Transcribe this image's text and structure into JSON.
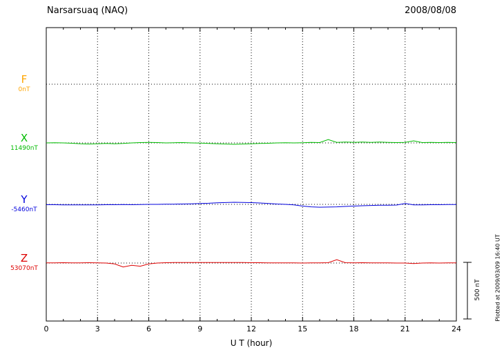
{
  "header": {
    "station": "Narsarsuaq (NAQ)",
    "date": "2008/08/08"
  },
  "xaxis": {
    "label": "U T (hour)",
    "ticks": [
      "0",
      "3",
      "6",
      "9",
      "12",
      "15",
      "18",
      "21",
      "24"
    ]
  },
  "scale_bar": {
    "label": "500 nT",
    "nT": 500
  },
  "footer_note": "Plotted at 2009/03/09 16:40 UT",
  "chart_data": {
    "type": "line",
    "title": "Narsarsuaq (NAQ) magnetogram 2008/08/08",
    "xlabel": "U T (hour)",
    "x_range": [
      0,
      24
    ],
    "x_step_hours": 0.5,
    "scale_bar_nT": 500,
    "grid": "dotted",
    "legend_position": "left",
    "series": [
      {
        "name": "F",
        "baseline_label": "0nT",
        "baseline_value": 0,
        "color": "#FFA500",
        "has_trace": false,
        "values_offset_nT": []
      },
      {
        "name": "X",
        "baseline_label": "11490nT",
        "baseline_value": 11490,
        "color": "#00BB00",
        "has_trace": true,
        "values_offset_nT": [
          0,
          2,
          0,
          -3,
          -8,
          -10,
          -8,
          -5,
          -8,
          -5,
          0,
          3,
          5,
          3,
          0,
          2,
          3,
          0,
          -2,
          -5,
          -8,
          -10,
          -12,
          -10,
          -8,
          -5,
          -3,
          0,
          2,
          0,
          2,
          5,
          3,
          30,
          5,
          8,
          5,
          8,
          5,
          8,
          5,
          3,
          5,
          18,
          3,
          5,
          3,
          5,
          3
        ]
      },
      {
        "name": "Y",
        "baseline_label": "-5460nT",
        "baseline_value": -5460,
        "color": "#0000DD",
        "has_trace": true,
        "values_offset_nT": [
          -3,
          -3,
          -4,
          -4,
          -5,
          -4,
          -4,
          -3,
          -3,
          -2,
          -3,
          -2,
          0,
          0,
          2,
          2,
          3,
          5,
          8,
          10,
          14,
          16,
          18,
          17,
          15,
          12,
          8,
          3,
          0,
          -5,
          -15,
          -22,
          -25,
          -24,
          -22,
          -18,
          -15,
          -12,
          -10,
          -8,
          -8,
          -6,
          8,
          -5,
          -4,
          -3,
          -3,
          -2,
          -2
        ]
      },
      {
        "name": "Z",
        "baseline_label": "53070nT",
        "baseline_value": 53070,
        "color": "#DD0000",
        "has_trace": true,
        "values_offset_nT": [
          2,
          2,
          3,
          2,
          2,
          3,
          2,
          0,
          -8,
          -35,
          -20,
          -28,
          -8,
          0,
          3,
          5,
          5,
          4,
          4,
          5,
          4,
          5,
          4,
          4,
          3,
          3,
          2,
          2,
          2,
          2,
          0,
          2,
          2,
          3,
          30,
          3,
          2,
          3,
          2,
          2,
          2,
          0,
          0,
          -5,
          0,
          2,
          0,
          2,
          2
        ]
      }
    ]
  }
}
